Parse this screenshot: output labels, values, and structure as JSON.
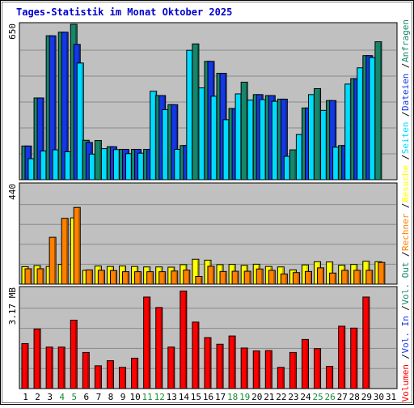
{
  "chart_data": {
    "type": "bar",
    "title": "Tages-Statistik im Monat Oktober 2025",
    "days": [
      "1",
      "2",
      "3",
      "4",
      "5",
      "6",
      "7",
      "8",
      "9",
      "10",
      "11",
      "12",
      "13",
      "14",
      "15",
      "16",
      "17",
      "18",
      "19",
      "20",
      "21",
      "22",
      "23",
      "24",
      "25",
      "26",
      "27",
      "28",
      "29",
      "30",
      "31"
    ],
    "weekend_days": [
      "4",
      "5",
      "11",
      "12",
      "18",
      "19",
      "25",
      "26"
    ],
    "panels": [
      {
        "id": "hits",
        "ymax_label": "650",
        "ymax": 650,
        "series": [
          {
            "name": "Anfragen",
            "color": "#16876b",
            "values": [
              141,
              342,
              602,
              617,
              650,
              165,
              164,
              138,
              127,
              127,
              127,
              352,
              314,
              143,
              568,
              495,
              445,
              298,
              408,
              356,
              352,
              337,
              125,
              300,
              381,
              331,
              143,
              423,
              519,
              577,
              0
            ]
          },
          {
            "name": "Dateien",
            "color": "#1438e6",
            "values": [
              141,
              342,
              602,
              617,
              566,
              156,
              0,
              138,
              127,
              127,
              127,
              352,
              314,
              143,
              0,
              495,
              445,
              298,
              0,
              356,
              352,
              337,
              0,
              300,
              0,
              331,
              143,
              423,
              519,
              0,
              0
            ]
          },
          {
            "name": "Seiten",
            "color": "#00dcff",
            "values": [
              88,
              120,
              125,
              117,
              488,
              107,
              130,
              126,
              109,
              111,
              370,
              293,
              127,
              541,
              384,
              349,
              251,
              359,
              333,
              335,
              328,
              98,
              189,
              356,
              290,
              136,
              400,
              468,
              511,
              0,
              0
            ]
          }
        ]
      },
      {
        "id": "visits",
        "ymax_label": "440",
        "ymax": 440,
        "series": [
          {
            "name": "Besuche",
            "color": "#ffff00",
            "values": [
              77,
              82,
              78,
              87,
              293,
              61,
              80,
              78,
              80,
              78,
              76,
              76,
              75,
              86,
              110,
              106,
              86,
              87,
              83,
              88,
              78,
              76,
              63,
              85,
              99,
              98,
              84,
              87,
              101,
              99,
              0
            ]
          },
          {
            "name": "Rechner",
            "color": "#ff8000",
            "values": [
              68,
              68,
              207,
              291,
              339,
              63,
              61,
              60,
              55,
              55,
              55,
              55,
              58,
              62,
              34,
              79,
              56,
              57,
              57,
              67,
              61,
              45,
              51,
              56,
              72,
              49,
              61,
              61,
              61,
              96,
              0
            ]
          }
        ]
      },
      {
        "id": "volume",
        "ymax_label": "3.17 MB",
        "ymax": 3.17,
        "series": [
          {
            "name": "Volumen",
            "color": "#ff0000",
            "values": [
              1.42,
              1.88,
              1.31,
              1.31,
              2.16,
              1.14,
              0.72,
              0.88,
              0.67,
              0.96,
              2.89,
              2.56,
              1.31,
              3.08,
              2.1,
              1.61,
              1.4,
              1.66,
              1.28,
              1.19,
              1.2,
              0.67,
              1.14,
              1.55,
              1.26,
              0.7,
              1.97,
              1.91,
              2.89,
              0,
              0
            ]
          }
        ]
      }
    ],
    "legend": {
      "placement": "right",
      "items": [
        {
          "text": "Anfragen",
          "color": "#16876b"
        },
        {
          "text": "Dateien",
          "color": "#1438e6"
        },
        {
          "text": "Seiten",
          "color": "#00dcff"
        },
        {
          "text": "Besuche",
          "color": "#ffff00"
        },
        {
          "text": "Rechner",
          "color": "#ff8000"
        },
        {
          "text": "Vol. Out",
          "color": "#16876b"
        },
        {
          "text": "Vol. In",
          "color": "#1438e6"
        },
        {
          "text": "Volumen",
          "color": "#ff0000"
        }
      ]
    },
    "grid": true
  }
}
